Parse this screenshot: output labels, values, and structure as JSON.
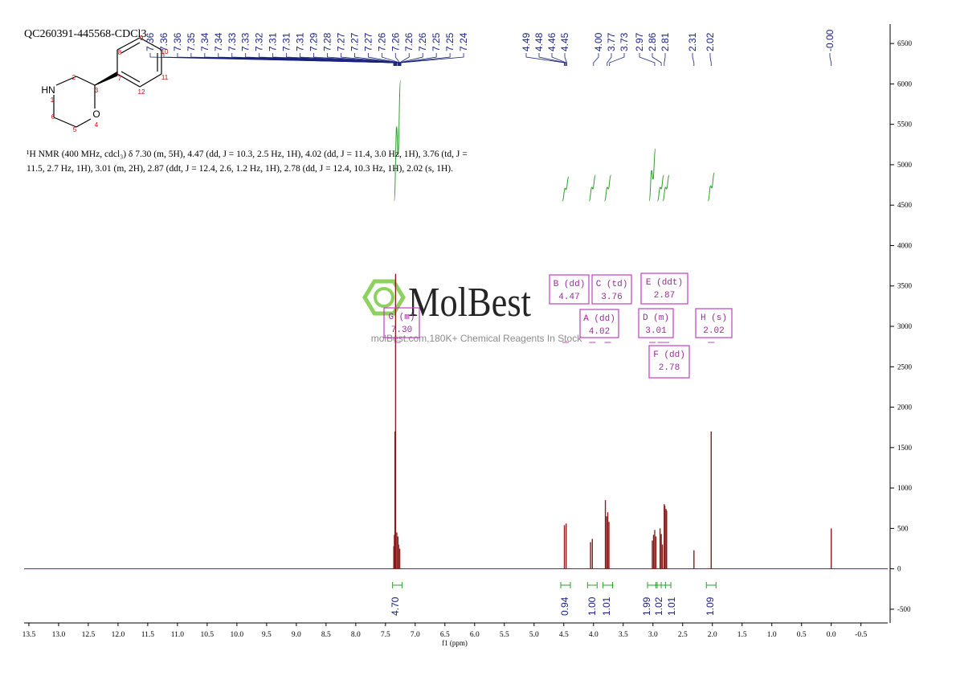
{
  "chart_data": {
    "type": "nmr",
    "title": "QC260391-445568-CDCl3",
    "xlabel": "f1 (ppm)",
    "xlim": [
      13.58,
      -0.95
    ],
    "ylim": [
      -670,
      6740
    ],
    "xticks": [
      13.5,
      {
        "value": 13,
        "label": "13.0"
      },
      12.5,
      {
        "value": 12,
        "label": "12.0"
      },
      11.5,
      {
        "value": 11,
        "label": "11.0"
      },
      10.5,
      {
        "value": 10,
        "label": "10.0"
      },
      9.5,
      {
        "value": 9,
        "label": "9.0"
      },
      8.5,
      {
        "value": 8,
        "label": "8.0"
      },
      7.5,
      {
        "value": 7,
        "label": "7.0"
      },
      6.5,
      {
        "value": 6,
        "label": "6.0"
      },
      5.5,
      {
        "value": 5,
        "label": "5.0"
      },
      4.5,
      {
        "value": 4,
        "label": "4.0"
      },
      3.5,
      {
        "value": 3,
        "label": "3.0"
      },
      2.5,
      {
        "value": 2,
        "label": "2.0"
      },
      1.5,
      {
        "value": 1,
        "label": "1.0"
      },
      0.5,
      {
        "value": 0,
        "label": "0.0"
      },
      -0.5
    ],
    "yticks": [
      -500,
      0,
      500,
      1000,
      1500,
      2000,
      2500,
      3000,
      3500,
      4000,
      4500,
      5000,
      5500,
      6000,
      6500
    ],
    "color": "#8b1a1a",
    "x": [
      7.36,
      7.35,
      7.34,
      7.33,
      7.31,
      7.29,
      7.28,
      7.26,
      4.49,
      4.46,
      4.05,
      4.02,
      3.8,
      3.78,
      3.76,
      3.74,
      3.01,
      2.99,
      2.97,
      2.95,
      2.88,
      2.86,
      2.84,
      2.81,
      2.8,
      2.78,
      2.77,
      2.31,
      2.02,
      0.0
    ],
    "values": [
      280,
      420,
      1700,
      3650,
      450,
      400,
      300,
      250,
      540,
      560,
      330,
      370,
      850,
      650,
      700,
      580,
      350,
      420,
      480,
      400,
      500,
      430,
      300,
      800,
      780,
      740,
      720,
      230,
      1700,
      500
    ],
    "peak_labels": [
      "7.36",
      "7.36",
      "7.36",
      "7.35",
      "7.34",
      "7.34",
      "7.33",
      "7.33",
      "7.32",
      "7.31",
      "7.31",
      "7.31",
      "7.29",
      "7.28",
      "7.27",
      "7.27",
      "7.27",
      "7.26",
      "7.26",
      "7.26",
      "7.26",
      "7.25",
      "7.25",
      "7.24",
      "4.49",
      "4.48",
      "4.46",
      "4.45",
      "4.00",
      "3.77",
      "3.73",
      "2.97",
      "2.86",
      "2.81",
      "2.31",
      "2.02",
      "-0.00"
    ],
    "multiplets": [
      {
        "label": "G (m)",
        "shift": "7.30",
        "integral": "4.70"
      },
      {
        "label": "B (dd)",
        "shift": "4.47",
        "integral": "0.94"
      },
      {
        "label": "A (dd)",
        "shift": "4.02",
        "integral": "1.00"
      },
      {
        "label": "C (td)",
        "shift": "3.76",
        "integral": "1.01"
      },
      {
        "label": "D (m)",
        "shift": "3.01",
        "integral": "1.99"
      },
      {
        "label": "E (ddt)",
        "shift": "2.87",
        "integral": "1.02"
      },
      {
        "label": "F (dd)",
        "shift": "2.78",
        "integral": "1.01"
      },
      {
        "label": "H (s)",
        "shift": "2.02",
        "integral": "1.09"
      }
    ],
    "description": "¹H NMR (400 MHz, cdcl₃) δ 7.30 (m, 5H), 4.47 (dd, J = 10.3, 2.5 Hz, 1H), 4.02 (dd, J = 11.4, 3.0 Hz, 1H), 3.76 (td, J = 11.5, 2.7 Hz, 1H), 3.01 (m, 2H), 2.87 (ddt, J = 12.4, 2.6, 1.2 Hz, 1H), 2.78 (dd, J = 12.4, 10.3 Hz, 1H), 2.02 (s, 1H).",
    "structure_labels": [
      "HN",
      "O",
      "1",
      "2",
      "3",
      "4",
      "5",
      "6",
      "7",
      "8",
      "9",
      "10",
      "11",
      "12"
    ],
    "watermark": {
      "brand": "MolBest",
      "tagline": "molBest.com,180K+ Chemical Reagents In Stock"
    }
  }
}
